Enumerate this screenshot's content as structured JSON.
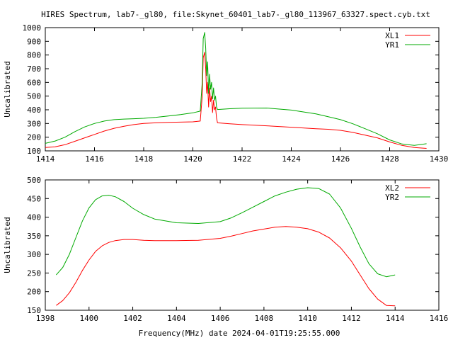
{
  "chart_data": [
    {
      "type": "line",
      "title": "HIRES Spectrum, lab7-_gl80, file:Skynet_60401_lab7-_gl80_113967_63327.spect.cyb.txt",
      "xlabel": "",
      "ylabel": "Uncalibrated",
      "xlim": [
        1414,
        1430
      ],
      "ylim": [
        100,
        1000
      ],
      "xticks": [
        "1414",
        "1416",
        "1418",
        "1420",
        "1422",
        "1424",
        "1426",
        "1428",
        "1430"
      ],
      "yticks": [
        "100",
        "200",
        "300",
        "400",
        "500",
        "600",
        "700",
        "800",
        "900",
        "1000"
      ],
      "grid": false,
      "legend": "top-right",
      "series": [
        {
          "name": "XL1",
          "color": "#ff0000",
          "x": [
            1414.0,
            1414.4,
            1414.8,
            1415.2,
            1415.6,
            1416.0,
            1416.4,
            1416.8,
            1417.2,
            1417.6,
            1418.0,
            1418.5,
            1419.0,
            1419.5,
            1420.0,
            1420.3,
            1420.38,
            1420.42,
            1420.48,
            1420.52,
            1420.56,
            1420.6,
            1420.64,
            1420.68,
            1420.72,
            1420.76,
            1420.8,
            1420.84,
            1420.88,
            1420.92,
            1420.96,
            1421.0,
            1421.5,
            1422.0,
            1423.0,
            1424.0,
            1425.0,
            1425.5,
            1426.0,
            1426.5,
            1427.0,
            1427.5,
            1428.0,
            1428.5,
            1429.0,
            1429.5
          ],
          "values": [
            125,
            130,
            145,
            170,
            195,
            220,
            245,
            265,
            280,
            292,
            300,
            305,
            308,
            310,
            312,
            318,
            500,
            780,
            820,
            700,
            520,
            600,
            420,
            560,
            460,
            500,
            380,
            470,
            400,
            420,
            340,
            305,
            298,
            292,
            283,
            273,
            262,
            258,
            250,
            235,
            215,
            195,
            165,
            140,
            125,
            118
          ]
        },
        {
          "name": "YR1",
          "color": "#00aa00",
          "x": [
            1414.0,
            1414.4,
            1414.8,
            1415.2,
            1415.6,
            1416.0,
            1416.4,
            1416.8,
            1417.2,
            1417.6,
            1418.0,
            1418.5,
            1419.0,
            1419.5,
            1420.0,
            1420.3,
            1420.38,
            1420.42,
            1420.48,
            1420.52,
            1420.56,
            1420.6,
            1420.64,
            1420.68,
            1420.72,
            1420.76,
            1420.8,
            1420.84,
            1420.88,
            1420.92,
            1420.96,
            1421.0,
            1421.5,
            1422.0,
            1423.0,
            1424.0,
            1425.0,
            1425.5,
            1426.0,
            1426.5,
            1427.0,
            1427.5,
            1428.0,
            1428.5,
            1429.0,
            1429.5
          ],
          "values": [
            155,
            172,
            200,
            240,
            275,
            300,
            318,
            328,
            332,
            335,
            338,
            345,
            355,
            365,
            378,
            390,
            600,
            920,
            965,
            850,
            650,
            750,
            520,
            660,
            550,
            600,
            480,
            560,
            470,
            500,
            420,
            402,
            408,
            412,
            413,
            398,
            370,
            350,
            328,
            298,
            262,
            225,
            180,
            150,
            140,
            152
          ]
        }
      ]
    },
    {
      "type": "line",
      "title": "",
      "xlabel": "Frequency(MHz) date 2024-04-01T19:25:55.000",
      "ylabel": "Uncalibrated",
      "xlim": [
        1398,
        1416
      ],
      "ylim": [
        150,
        500
      ],
      "xticks": [
        "1398",
        "1400",
        "1402",
        "1404",
        "1406",
        "1408",
        "1410",
        "1412",
        "1414",
        "1416"
      ],
      "yticks": [
        "150",
        "200",
        "250",
        "300",
        "350",
        "400",
        "450",
        "500"
      ],
      "grid": false,
      "legend": "top-right",
      "series": [
        {
          "name": "XL2",
          "color": "#ff0000",
          "x": [
            1398.5,
            1398.8,
            1399.1,
            1399.4,
            1399.7,
            1400.0,
            1400.3,
            1400.6,
            1400.9,
            1401.2,
            1401.6,
            1402.0,
            1402.5,
            1403.0,
            1404.0,
            1405.0,
            1406.0,
            1406.5,
            1407.0,
            1407.5,
            1408.0,
            1408.5,
            1409.0,
            1409.5,
            1410.0,
            1410.5,
            1411.0,
            1411.5,
            1412.0,
            1412.4,
            1412.8,
            1413.2,
            1413.6,
            1414.0
          ],
          "values": [
            163,
            176,
            197,
            225,
            257,
            285,
            308,
            323,
            332,
            337,
            340,
            340,
            338,
            337,
            337,
            338,
            343,
            349,
            356,
            363,
            368,
            373,
            375,
            373,
            369,
            360,
            344,
            318,
            282,
            245,
            208,
            180,
            163,
            162
          ]
        },
        {
          "name": "YR2",
          "color": "#00aa00",
          "x": [
            1398.5,
            1398.8,
            1399.1,
            1399.4,
            1399.7,
            1400.0,
            1400.3,
            1400.6,
            1400.9,
            1401.2,
            1401.6,
            1402.0,
            1402.5,
            1403.0,
            1404.0,
            1405.0,
            1406.0,
            1406.5,
            1407.0,
            1407.5,
            1408.0,
            1408.5,
            1409.0,
            1409.5,
            1410.0,
            1410.5,
            1411.0,
            1411.5,
            1412.0,
            1412.4,
            1412.8,
            1413.2,
            1413.6,
            1414.0
          ],
          "values": [
            245,
            265,
            300,
            345,
            390,
            425,
            447,
            457,
            459,
            455,
            442,
            424,
            407,
            395,
            385,
            383,
            388,
            398,
            412,
            427,
            442,
            457,
            467,
            475,
            479,
            477,
            462,
            425,
            370,
            320,
            275,
            248,
            240,
            245
          ]
        }
      ]
    }
  ]
}
